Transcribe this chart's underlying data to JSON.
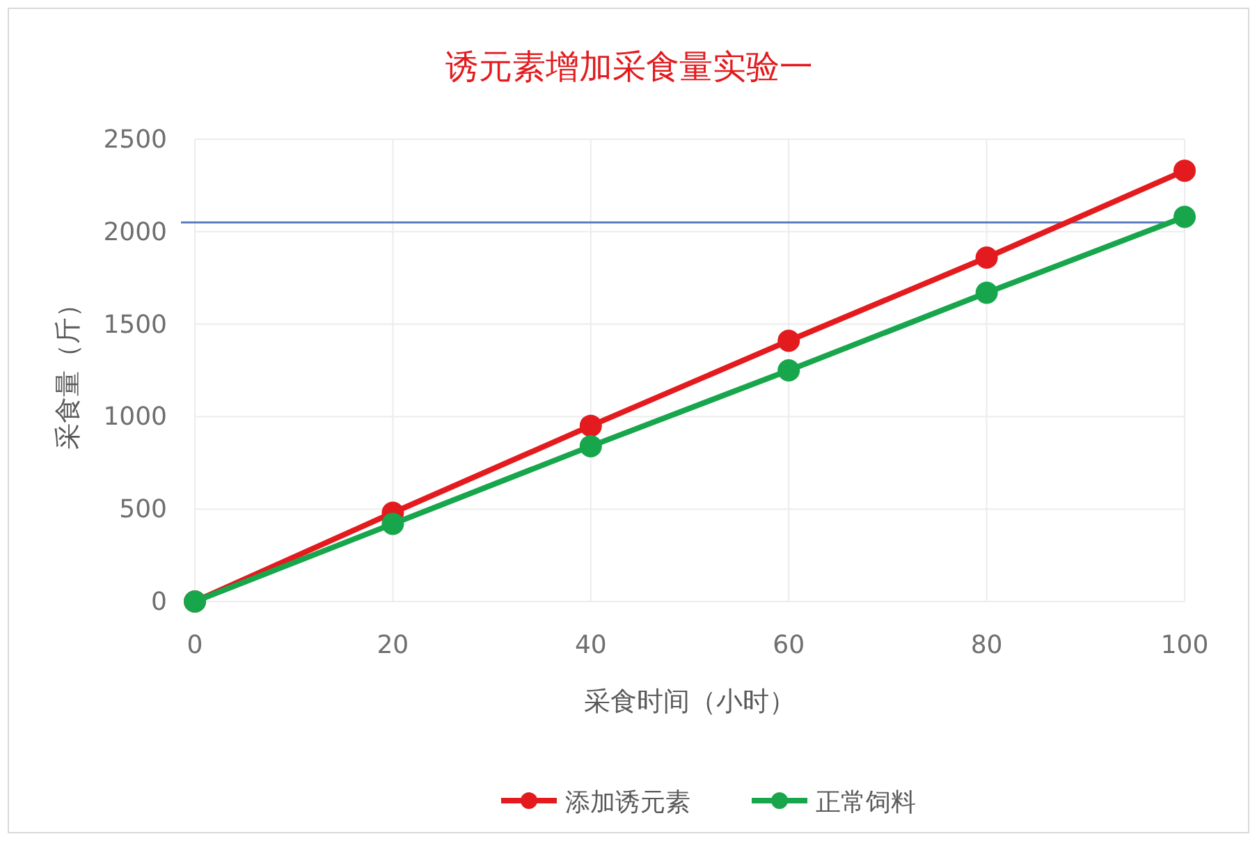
{
  "chart_data": {
    "type": "line",
    "title": "诱元素增加采食量实验一",
    "xlabel": "采食时间（小时）",
    "ylabel": "采食量（斤）",
    "x": [
      0,
      20,
      40,
      60,
      80,
      100
    ],
    "series": [
      {
        "name": "添加诱元素",
        "color": "#e31b1e",
        "values": [
          0,
          480,
          950,
          1410,
          1860,
          2330
        ]
      },
      {
        "name": "正常饲料",
        "color": "#17a64c",
        "values": [
          0,
          420,
          840,
          1250,
          1670,
          2080
        ]
      }
    ],
    "xlim": [
      0,
      100
    ],
    "xticks": [
      0,
      20,
      40,
      60,
      80,
      100
    ],
    "ylim": [
      0,
      2500
    ],
    "yticks": [
      0,
      500,
      1000,
      1500,
      2000,
      2500
    ],
    "ref_lines": [
      {
        "axis": "y",
        "value": 2050,
        "color": "#5b7fc0"
      }
    ],
    "grid": true,
    "legend": "bottom",
    "marker": "circle",
    "line_style": "solid"
  }
}
